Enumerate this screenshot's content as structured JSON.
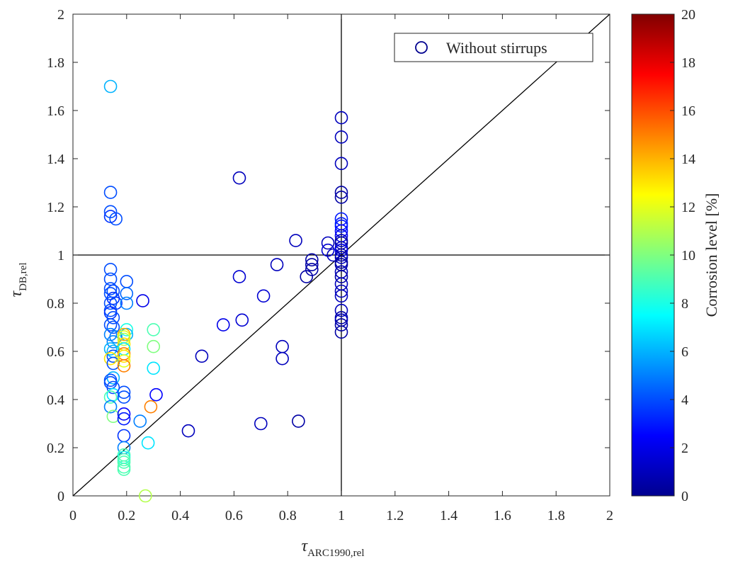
{
  "chart_data": {
    "type": "scatter",
    "xlabel": {
      "symbol": "τ",
      "subscript": "ARC1990,rel"
    },
    "ylabel": {
      "symbol": "τ",
      "subscript": "DB,rel"
    },
    "xlim": [
      0,
      2
    ],
    "ylim": [
      0,
      2
    ],
    "xticks": [
      "0",
      "0.2",
      "0.4",
      "0.6",
      "0.8",
      "1",
      "1.2",
      "1.4",
      "1.6",
      "1.8",
      "2"
    ],
    "yticks": [
      "0",
      "0.2",
      "0.4",
      "0.6",
      "0.8",
      "1",
      "1.2",
      "1.4",
      "1.6",
      "1.8",
      "2"
    ],
    "reference_lines": {
      "diagonal": true,
      "x_equals": 1,
      "y_equals": 1
    },
    "legend": {
      "label": "Without stirrups",
      "position": "top-right"
    },
    "colorbar": {
      "label": "Corrosion level [%]",
      "range": [
        0,
        20
      ],
      "ticks": [
        "0",
        "2",
        "4",
        "6",
        "8",
        "10",
        "12",
        "14",
        "16",
        "18",
        "20"
      ],
      "colormap": "jet"
    },
    "series": [
      {
        "name": "Without stirrups",
        "marker": "open-circle",
        "points": [
          [
            0.14,
            1.7,
            6
          ],
          [
            0.14,
            1.26,
            4
          ],
          [
            0.14,
            1.18,
            4
          ],
          [
            0.14,
            1.16,
            3.5
          ],
          [
            0.16,
            1.15,
            4
          ],
          [
            0.14,
            0.94,
            4
          ],
          [
            0.14,
            0.9,
            4
          ],
          [
            0.14,
            0.86,
            4
          ],
          [
            0.14,
            0.84,
            4
          ],
          [
            0.15,
            0.85,
            4
          ],
          [
            0.15,
            0.82,
            3.5
          ],
          [
            0.16,
            0.8,
            3.5
          ],
          [
            0.14,
            0.8,
            4
          ],
          [
            0.14,
            0.77,
            4
          ],
          [
            0.14,
            0.76,
            3.5
          ],
          [
            0.15,
            0.74,
            4
          ],
          [
            0.14,
            0.71,
            4
          ],
          [
            0.15,
            0.7,
            4
          ],
          [
            0.14,
            0.67,
            5
          ],
          [
            0.16,
            0.66,
            5
          ],
          [
            0.15,
            0.64,
            5
          ],
          [
            0.14,
            0.61,
            6
          ],
          [
            0.15,
            0.6,
            6
          ],
          [
            0.15,
            0.58,
            4
          ],
          [
            0.14,
            0.57,
            13
          ],
          [
            0.15,
            0.55,
            4
          ],
          [
            0.15,
            0.49,
            6
          ],
          [
            0.14,
            0.48,
            4
          ],
          [
            0.14,
            0.47,
            4
          ],
          [
            0.15,
            0.45,
            4
          ],
          [
            0.15,
            0.42,
            7
          ],
          [
            0.14,
            0.41,
            9
          ],
          [
            0.14,
            0.37,
            5
          ],
          [
            0.15,
            0.33,
            10
          ],
          [
            0.2,
            0.89,
            4
          ],
          [
            0.2,
            0.84,
            4.5
          ],
          [
            0.2,
            0.8,
            5
          ],
          [
            0.2,
            0.69,
            8
          ],
          [
            0.2,
            0.67,
            6
          ],
          [
            0.19,
            0.67,
            14
          ],
          [
            0.19,
            0.66,
            12
          ],
          [
            0.19,
            0.65,
            11
          ],
          [
            0.19,
            0.63,
            13
          ],
          [
            0.19,
            0.61,
            7
          ],
          [
            0.19,
            0.59,
            15
          ],
          [
            0.19,
            0.58,
            13
          ],
          [
            0.19,
            0.56,
            12
          ],
          [
            0.19,
            0.54,
            15
          ],
          [
            0.19,
            0.43,
            4
          ],
          [
            0.19,
            0.41,
            4
          ],
          [
            0.19,
            0.34,
            2.5
          ],
          [
            0.19,
            0.32,
            3
          ],
          [
            0.19,
            0.25,
            3.5
          ],
          [
            0.19,
            0.2,
            5
          ],
          [
            0.19,
            0.17,
            9
          ],
          [
            0.19,
            0.16,
            8
          ],
          [
            0.19,
            0.15,
            9
          ],
          [
            0.19,
            0.14,
            9
          ],
          [
            0.19,
            0.12,
            9
          ],
          [
            0.19,
            0.11,
            9
          ],
          [
            0.25,
            0.31,
            5
          ],
          [
            0.26,
            0.81,
            2
          ],
          [
            0.28,
            0.22,
            7
          ],
          [
            0.27,
            0.0,
            11
          ],
          [
            0.29,
            0.37,
            15
          ],
          [
            0.3,
            0.69,
            9
          ],
          [
            0.3,
            0.62,
            10
          ],
          [
            0.3,
            0.53,
            7
          ],
          [
            0.31,
            0.42,
            2.5
          ],
          [
            0.43,
            0.27,
            1
          ],
          [
            0.48,
            0.58,
            1
          ],
          [
            0.56,
            0.71,
            2
          ],
          [
            0.62,
            0.91,
            1.5
          ],
          [
            0.62,
            1.32,
            1
          ],
          [
            0.63,
            0.73,
            1.5
          ],
          [
            0.7,
            0.3,
            1
          ],
          [
            0.71,
            0.83,
            1.5
          ],
          [
            0.76,
            0.96,
            1
          ],
          [
            0.78,
            0.57,
            1
          ],
          [
            0.78,
            0.62,
            1
          ],
          [
            0.83,
            1.06,
            1
          ],
          [
            0.84,
            0.31,
            0.5
          ],
          [
            0.87,
            0.91,
            0.5
          ],
          [
            0.89,
            0.94,
            0.5
          ],
          [
            0.89,
            0.96,
            0.5
          ],
          [
            0.89,
            0.98,
            0.5
          ],
          [
            0.95,
            1.05,
            1
          ],
          [
            0.95,
            1.02,
            1.5
          ],
          [
            0.97,
            1.0,
            1
          ],
          [
            1.0,
            1.57,
            1
          ],
          [
            1.0,
            1.49,
            1
          ],
          [
            1.0,
            1.38,
            1
          ],
          [
            1.0,
            1.26,
            0.5
          ],
          [
            1.0,
            1.24,
            0.5
          ],
          [
            1.0,
            1.15,
            3
          ],
          [
            1.0,
            1.13,
            3
          ],
          [
            1.0,
            1.12,
            3
          ],
          [
            1.0,
            1.1,
            2.5
          ],
          [
            1.0,
            1.08,
            2
          ],
          [
            1.0,
            1.06,
            1
          ],
          [
            1.0,
            1.05,
            0.5
          ],
          [
            1.0,
            1.03,
            1
          ],
          [
            1.0,
            1.02,
            2
          ],
          [
            1.0,
            1.0,
            1
          ],
          [
            1.0,
            0.99,
            1
          ],
          [
            1.0,
            0.97,
            0.5
          ],
          [
            1.0,
            0.96,
            0.5
          ],
          [
            1.0,
            0.93,
            1
          ],
          [
            1.0,
            0.91,
            0.5
          ],
          [
            1.0,
            0.88,
            1
          ],
          [
            1.0,
            0.85,
            1
          ],
          [
            1.0,
            0.83,
            1
          ],
          [
            1.0,
            0.77,
            1
          ],
          [
            1.0,
            0.74,
            0.5
          ],
          [
            1.0,
            0.73,
            1
          ],
          [
            1.0,
            0.71,
            0.5
          ],
          [
            1.0,
            0.68,
            0.5
          ]
        ]
      }
    ]
  }
}
